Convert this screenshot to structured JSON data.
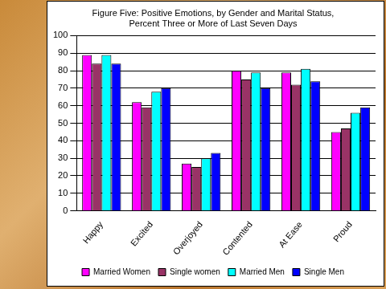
{
  "chart_data": {
    "type": "bar",
    "title": "Figure Five: Positive Emotions, by Gender and Marital Status, Percent Three or More of Last Seven Days",
    "categories": [
      "Happy",
      "Excited",
      "Overjoyed",
      "Contented",
      "At Ease",
      "Proud"
    ],
    "series": [
      {
        "name": "Married Women",
        "color": "#ff00ff",
        "values": [
          89,
          62,
          27,
          80,
          79,
          45
        ]
      },
      {
        "name": "Single women",
        "color": "#993366",
        "values": [
          84,
          59,
          25,
          75,
          72,
          47
        ]
      },
      {
        "name": "Married Men",
        "color": "#00ffff",
        "values": [
          89,
          68,
          30,
          79,
          81,
          56
        ]
      },
      {
        "name": "Single Men",
        "color": "#0000ff",
        "values": [
          84,
          70,
          33,
          70,
          74,
          59
        ]
      }
    ],
    "ylim": [
      0,
      100
    ],
    "yticks": [
      0,
      10,
      20,
      30,
      40,
      50,
      60,
      70,
      80,
      90,
      100
    ],
    "grid": true,
    "legend": "bottom"
  }
}
